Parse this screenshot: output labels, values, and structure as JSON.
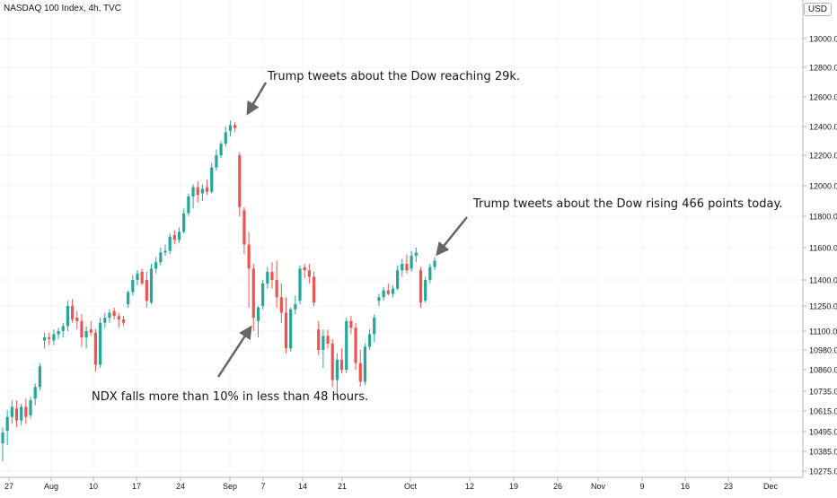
{
  "chart_data": {
    "type": "candlestick",
    "title": "NASDAQ 100 Index, 4h, TVC",
    "currency": "USD",
    "y_ticks": [
      13000,
      12800,
      12600,
      12400,
      12200,
      12000,
      11800,
      11600,
      11400,
      11250,
      11100,
      10980,
      10860,
      10735,
      10615,
      10495,
      10385,
      10275
    ],
    "x_ticks": [
      "27",
      "Aug",
      "10",
      "17",
      "24",
      "Sep",
      "7",
      "14",
      "21",
      "Oct",
      "12",
      "19",
      "26",
      "Nov",
      "9",
      "16",
      "23",
      "Dec"
    ],
    "y_scale": "log",
    "grid": true,
    "colors": {
      "up": "#26a69a",
      "down": "#ef5350",
      "grid": "#f0f3fa",
      "axis_text": "#131722",
      "annotation_arrow": "#666666"
    },
    "candles": [
      {
        "o": 10430,
        "h": 10520,
        "l": 10330,
        "c": 10490
      },
      {
        "o": 10500,
        "h": 10620,
        "l": 10420,
        "c": 10580
      },
      {
        "o": 10580,
        "h": 10680,
        "l": 10540,
        "c": 10640
      },
      {
        "o": 10630,
        "h": 10680,
        "l": 10520,
        "c": 10560
      },
      {
        "o": 10560,
        "h": 10660,
        "l": 10530,
        "c": 10640
      },
      {
        "o": 10640,
        "h": 10690,
        "l": 10540,
        "c": 10580
      },
      {
        "o": 10590,
        "h": 10700,
        "l": 10570,
        "c": 10680
      },
      {
        "o": 10690,
        "h": 10780,
        "l": 10650,
        "c": 10760
      },
      {
        "o": 10760,
        "h": 10900,
        "l": 10740,
        "c": 10880
      },
      {
        "o": 11040,
        "h": 11090,
        "l": 10990,
        "c": 11060
      },
      {
        "o": 11060,
        "h": 11090,
        "l": 11010,
        "c": 11050
      },
      {
        "o": 11040,
        "h": 11110,
        "l": 11010,
        "c": 11080
      },
      {
        "o": 11080,
        "h": 11120,
        "l": 11050,
        "c": 11100
      },
      {
        "o": 11100,
        "h": 11150,
        "l": 11060,
        "c": 11130
      },
      {
        "o": 11130,
        "h": 11280,
        "l": 11100,
        "c": 11250
      },
      {
        "o": 11250,
        "h": 11290,
        "l": 11150,
        "c": 11170
      },
      {
        "o": 11180,
        "h": 11220,
        "l": 11110,
        "c": 11160
      },
      {
        "o": 11160,
        "h": 11200,
        "l": 11000,
        "c": 11060
      },
      {
        "o": 11060,
        "h": 11130,
        "l": 10990,
        "c": 11100
      },
      {
        "o": 11110,
        "h": 11160,
        "l": 11070,
        "c": 11090
      },
      {
        "o": 11090,
        "h": 11110,
        "l": 10850,
        "c": 10890
      },
      {
        "o": 10890,
        "h": 11180,
        "l": 10870,
        "c": 11150
      },
      {
        "o": 11150,
        "h": 11210,
        "l": 11120,
        "c": 11180
      },
      {
        "o": 11180,
        "h": 11230,
        "l": 11150,
        "c": 11210
      },
      {
        "o": 11220,
        "h": 11240,
        "l": 11170,
        "c": 11190
      },
      {
        "o": 11190,
        "h": 11210,
        "l": 11120,
        "c": 11170
      },
      {
        "o": 11170,
        "h": 11190,
        "l": 11130,
        "c": 11150
      },
      {
        "o": 11260,
        "h": 11340,
        "l": 11240,
        "c": 11330
      },
      {
        "o": 11330,
        "h": 11430,
        "l": 11310,
        "c": 11400
      },
      {
        "o": 11400,
        "h": 11460,
        "l": 11370,
        "c": 11440
      },
      {
        "o": 11450,
        "h": 11470,
        "l": 11370,
        "c": 11380
      },
      {
        "o": 11400,
        "h": 11450,
        "l": 11240,
        "c": 11280
      },
      {
        "o": 11270,
        "h": 11500,
        "l": 11260,
        "c": 11470
      },
      {
        "o": 11470,
        "h": 11540,
        "l": 11440,
        "c": 11510
      },
      {
        "o": 11510,
        "h": 11600,
        "l": 11490,
        "c": 11570
      },
      {
        "o": 11570,
        "h": 11620,
        "l": 11550,
        "c": 11580
      },
      {
        "o": 11580,
        "h": 11690,
        "l": 11560,
        "c": 11670
      },
      {
        "o": 11680,
        "h": 11710,
        "l": 11620,
        "c": 11650
      },
      {
        "o": 11650,
        "h": 11730,
        "l": 11630,
        "c": 11700
      },
      {
        "o": 11700,
        "h": 11850,
        "l": 11690,
        "c": 11820
      },
      {
        "o": 11820,
        "h": 11950,
        "l": 11800,
        "c": 11930
      },
      {
        "o": 11930,
        "h": 12010,
        "l": 11850,
        "c": 11990
      },
      {
        "o": 11990,
        "h": 12030,
        "l": 11890,
        "c": 11940
      },
      {
        "o": 11950,
        "h": 12010,
        "l": 11900,
        "c": 11980
      },
      {
        "o": 11990,
        "h": 12040,
        "l": 11940,
        "c": 11960
      },
      {
        "o": 11960,
        "h": 12150,
        "l": 11950,
        "c": 12120
      },
      {
        "o": 12120,
        "h": 12240,
        "l": 12100,
        "c": 12200
      },
      {
        "o": 12200,
        "h": 12300,
        "l": 12180,
        "c": 12280
      },
      {
        "o": 12280,
        "h": 12400,
        "l": 12260,
        "c": 12360
      },
      {
        "o": 12370,
        "h": 12440,
        "l": 12330,
        "c": 12410
      },
      {
        "o": 12410,
        "h": 12430,
        "l": 12360,
        "c": 12390
      },
      {
        "o": 12200,
        "h": 12220,
        "l": 11800,
        "c": 11860
      },
      {
        "o": 11840,
        "h": 11860,
        "l": 11560,
        "c": 11620
      },
      {
        "o": 11620,
        "h": 11700,
        "l": 11240,
        "c": 11470
      },
      {
        "o": 11470,
        "h": 11500,
        "l": 11100,
        "c": 11180
      },
      {
        "o": 11160,
        "h": 11250,
        "l": 11060,
        "c": 11240
      },
      {
        "o": 11250,
        "h": 11400,
        "l": 11230,
        "c": 11380
      },
      {
        "o": 11380,
        "h": 11480,
        "l": 11350,
        "c": 11450
      },
      {
        "o": 11450,
        "h": 11510,
        "l": 11350,
        "c": 11400
      },
      {
        "o": 11400,
        "h": 11520,
        "l": 11240,
        "c": 11300
      },
      {
        "o": 11300,
        "h": 11380,
        "l": 11150,
        "c": 11210
      },
      {
        "o": 11210,
        "h": 11300,
        "l": 10960,
        "c": 10990
      },
      {
        "o": 10990,
        "h": 11240,
        "l": 10970,
        "c": 11230
      },
      {
        "o": 11230,
        "h": 11310,
        "l": 11200,
        "c": 11260
      },
      {
        "o": 11280,
        "h": 11490,
        "l": 11260,
        "c": 11470
      },
      {
        "o": 11480,
        "h": 11500,
        "l": 11410,
        "c": 11460
      },
      {
        "o": 11460,
        "h": 11500,
        "l": 11380,
        "c": 11420
      },
      {
        "o": 11420,
        "h": 11450,
        "l": 11250,
        "c": 11270
      },
      {
        "o": 11110,
        "h": 11160,
        "l": 10950,
        "c": 10980
      },
      {
        "o": 10980,
        "h": 11110,
        "l": 10870,
        "c": 11070
      },
      {
        "o": 11070,
        "h": 11110,
        "l": 10990,
        "c": 11020
      },
      {
        "o": 11020,
        "h": 11050,
        "l": 10760,
        "c": 10800
      },
      {
        "o": 10800,
        "h": 10960,
        "l": 10690,
        "c": 10920
      },
      {
        "o": 10920,
        "h": 10990,
        "l": 10840,
        "c": 10860
      },
      {
        "o": 10860,
        "h": 11180,
        "l": 10840,
        "c": 11160
      },
      {
        "o": 11160,
        "h": 11190,
        "l": 11080,
        "c": 11120
      },
      {
        "o": 11120,
        "h": 11150,
        "l": 10860,
        "c": 10900
      },
      {
        "o": 10900,
        "h": 10980,
        "l": 10760,
        "c": 10790
      },
      {
        "o": 10790,
        "h": 11020,
        "l": 10770,
        "c": 11000
      },
      {
        "o": 11000,
        "h": 11110,
        "l": 10980,
        "c": 11080
      },
      {
        "o": 11080,
        "h": 11200,
        "l": 11030,
        "c": 11180
      },
      {
        "o": 11280,
        "h": 11320,
        "l": 11250,
        "c": 11300
      },
      {
        "o": 11300,
        "h": 11360,
        "l": 11280,
        "c": 11340
      },
      {
        "o": 11340,
        "h": 11380,
        "l": 11310,
        "c": 11320
      },
      {
        "o": 11320,
        "h": 11370,
        "l": 11300,
        "c": 11350
      },
      {
        "o": 11350,
        "h": 11490,
        "l": 11340,
        "c": 11460
      },
      {
        "o": 11460,
        "h": 11530,
        "l": 11420,
        "c": 11500
      },
      {
        "o": 11500,
        "h": 11560,
        "l": 11440,
        "c": 11460
      },
      {
        "o": 11470,
        "h": 11580,
        "l": 11450,
        "c": 11550
      },
      {
        "o": 11550,
        "h": 11600,
        "l": 11510,
        "c": 11570
      },
      {
        "o": 11460,
        "h": 11480,
        "l": 11240,
        "c": 11270
      },
      {
        "o": 11280,
        "h": 11420,
        "l": 11270,
        "c": 11400
      },
      {
        "o": 11400,
        "h": 11500,
        "l": 11380,
        "c": 11480
      },
      {
        "o": 11480,
        "h": 11540,
        "l": 11460,
        "c": 11520
      }
    ],
    "annotations": [
      {
        "text": "Trump tweets about the Dow reaching 29k."
      },
      {
        "text": "Trump tweets about the Dow rising 466 points today."
      },
      {
        "text": "NDX falls more than 10% in less than 48 hours."
      }
    ]
  }
}
